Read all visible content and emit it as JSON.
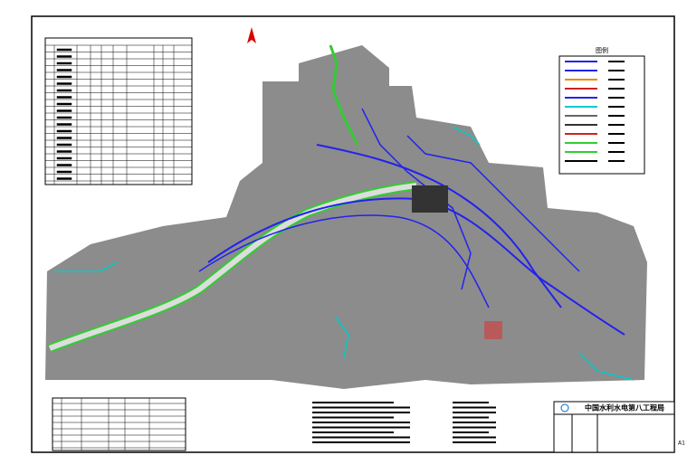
{
  "title_block": {
    "company": "中国水利水电第八工程局"
  },
  "legend": {
    "title": "图例"
  },
  "sheet_size": "A1"
}
